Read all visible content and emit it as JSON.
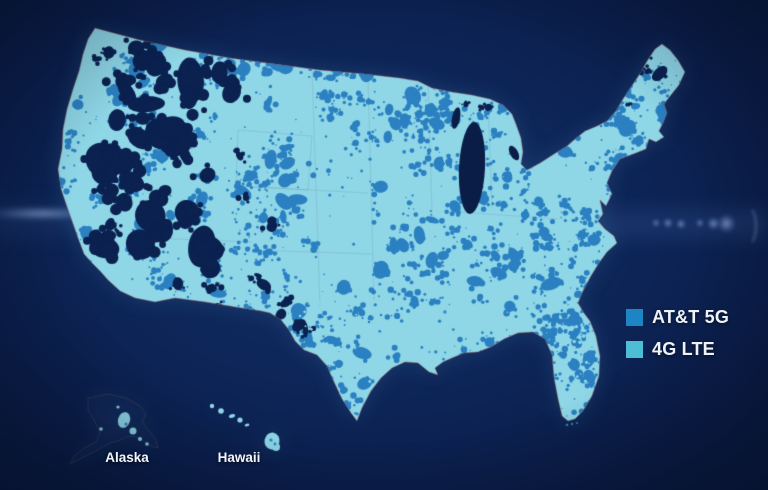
{
  "legend": {
    "items": [
      {
        "id": "att-5g",
        "label": "AT&T 5G",
        "color": "#1e85c5"
      },
      {
        "id": "4g-lte",
        "label": "4G LTE",
        "color": "#4ebdd6"
      }
    ]
  },
  "insets": {
    "alaska": {
      "label": "Alaska"
    },
    "hawaii": {
      "label": "Hawaii"
    }
  },
  "colors": {
    "background": "#0a1d46",
    "coverage_5g": "#2b80c1",
    "coverage_4g_lte": "#8fd7e7",
    "no_coverage": "#0b2150",
    "label_text": "#eef3fa"
  }
}
